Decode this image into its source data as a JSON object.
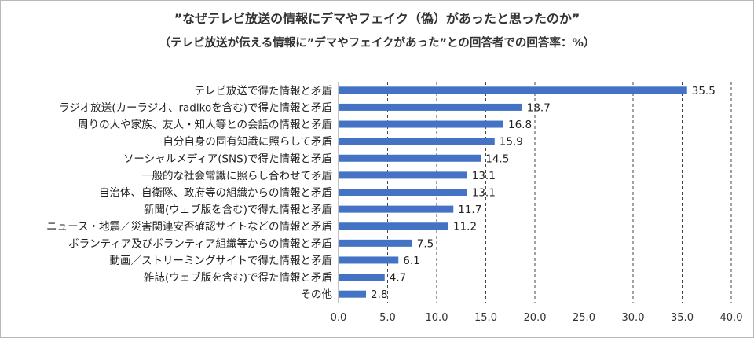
{
  "chart_data": {
    "type": "bar",
    "orientation": "horizontal",
    "title": "”なぜテレビ放送の情報にデマやフェイク（偽）があったと思ったのか”",
    "subtitle": "（テレビ放送が伝える情報に”デマやフェイクがあった”との回答者での回答率：%）",
    "categories": [
      "テレビ放送で得た情報と矛盾",
      "ラジオ放送(カーラジオ、radikoを含む)で得た情報と矛盾",
      "周りの人や家族、友人・知人等との会話の情報と矛盾",
      "自分自身の固有知識に照らして矛盾",
      "ソーシャルメディア(SNS)で得た情報と矛盾",
      "一般的な社会常識に照らし合わせて矛盾",
      "自治体、自衛隊、政府等の組織からの情報と矛盾",
      "新聞(ウェブ版を含む)で得た情報と矛盾",
      "ニュース・地震／災害関連安否確認サイトなどの情報と矛盾",
      "ボランティア及びボランティア組織等からの情報と矛盾",
      "動画／ストリーミングサイトで得た情報と矛盾",
      "雑誌(ウェブ版を含む)で得た情報と矛盾",
      "その他"
    ],
    "values": [
      35.5,
      18.7,
      16.8,
      15.9,
      14.5,
      13.1,
      13.1,
      11.7,
      11.2,
      7.5,
      6.1,
      4.7,
      2.8
    ],
    "value_labels": [
      "35.5",
      "18.7",
      "16.8",
      "15.9",
      "14.5",
      "13.1",
      "13.1",
      "11.7",
      "11.2",
      "7.5",
      "6.1",
      "4.7",
      "2.8"
    ],
    "xlim": [
      0,
      40
    ],
    "x_ticks": [
      "0.0",
      "5.0",
      "10.0",
      "15.0",
      "20.0",
      "25.0",
      "30.0",
      "35.0",
      "40.0"
    ],
    "bar_color": "#4472C4",
    "grid": "vertical dashed",
    "legend": "none"
  }
}
